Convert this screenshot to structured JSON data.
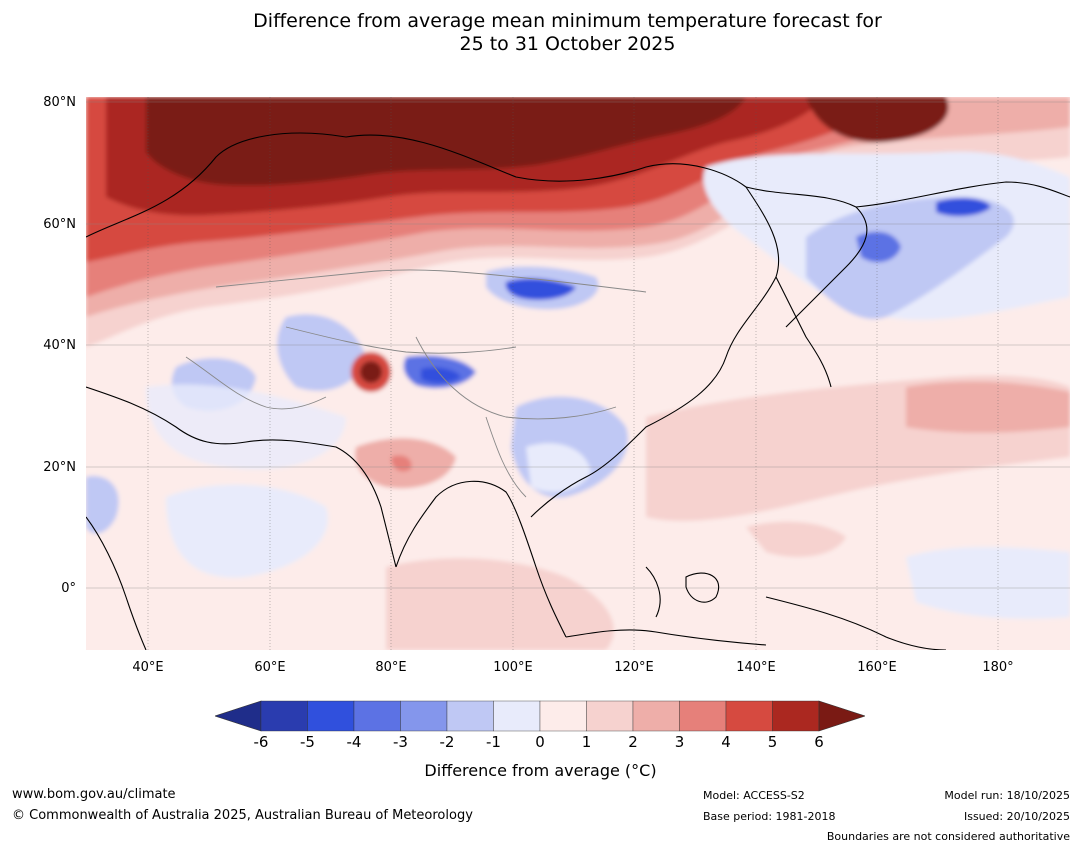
{
  "title": {
    "line1": "Difference from average mean minimum temperature forecast for",
    "line2": "25 to 31 October 2025"
  },
  "map": {
    "lat_labels": [
      "80°N",
      "60°N",
      "40°N",
      "20°N",
      "0°"
    ],
    "lon_labels": [
      "40°E",
      "60°E",
      "80°E",
      "100°E",
      "120°E",
      "140°E",
      "160°E",
      "180°"
    ]
  },
  "colorbar": {
    "ticks": [
      "-6",
      "-5",
      "-4",
      "-3",
      "-2",
      "-1",
      "0",
      "1",
      "2",
      "3",
      "4",
      "5",
      "6"
    ],
    "colors": [
      "#1f2d8a",
      "#2a3caf",
      "#3050dd",
      "#5c72e4",
      "#8496ec",
      "#bfc8f4",
      "#e8ebfb",
      "#fdecea",
      "#f6d2cf",
      "#eeaea9",
      "#e6807a",
      "#d64a40",
      "#ab2820",
      "#7a1a14"
    ],
    "title": "Difference from average (°C)"
  },
  "footer": {
    "website": "www.bom.gov.au/climate",
    "copyright": "© Commonwealth of Australia 2025, Australian Bureau of Meteorology",
    "model": "Model: ACCESS-S2",
    "base_period": "Base period: 1981-2018",
    "model_run": "Model run: 18/10/2025",
    "issued": "Issued: 20/10/2025",
    "disclaimer": "Boundaries are not considered authoritative"
  }
}
